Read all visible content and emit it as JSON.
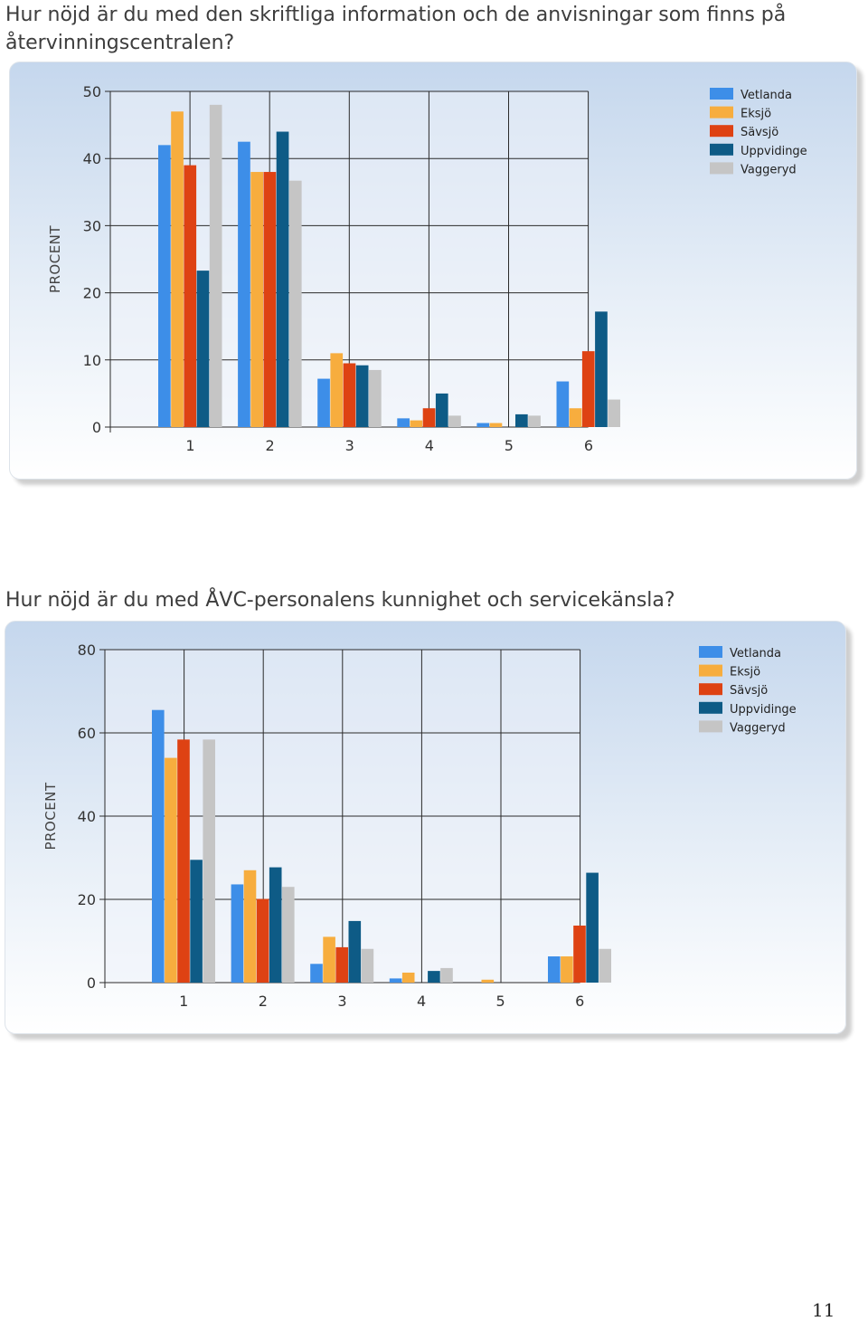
{
  "page": {
    "heading_1": "Hur nöjd är du med den skriftliga information och de anvisningar som finns på återvinningscentralen?",
    "heading_2": "Hur nöjd är du med ÅVC-personalens kunnighet och servicekänsla?",
    "page_number": "11"
  },
  "chart_data": [
    {
      "type": "bar",
      "title": "",
      "xlabel": "",
      "ylabel": "PROCENT",
      "categories": [
        "1",
        "2",
        "3",
        "4",
        "5",
        "6"
      ],
      "ylim": [
        0,
        50
      ],
      "yticks": [
        0,
        10,
        20,
        30,
        40,
        50
      ],
      "grid": true,
      "legend_position": "top-right",
      "series": [
        {
          "name": "Vetlanda",
          "color": "#3d8ee8",
          "values": [
            42,
            42.5,
            7.2,
            1.3,
            0.6,
            6.8
          ]
        },
        {
          "name": "Eksjö",
          "color": "#f7ad3e",
          "values": [
            47,
            38,
            11,
            1.0,
            0.6,
            2.8
          ]
        },
        {
          "name": "Sävsjö",
          "color": "#de4213",
          "values": [
            39,
            38,
            9.5,
            2.8,
            0,
            11.3
          ]
        },
        {
          "name": "Uppvidinge",
          "color": "#0e5b86",
          "values": [
            23.3,
            44,
            9.2,
            5.0,
            1.9,
            17.2
          ]
        },
        {
          "name": "Vaggeryd",
          "color": "#c5c5c5",
          "values": [
            48,
            36.7,
            8.5,
            1.7,
            1.7,
            4.1
          ]
        }
      ]
    },
    {
      "type": "bar",
      "title": "",
      "xlabel": "",
      "ylabel": "PROCENT",
      "categories": [
        "1",
        "2",
        "3",
        "4",
        "5",
        "6"
      ],
      "ylim": [
        0,
        80
      ],
      "yticks": [
        0,
        20,
        40,
        60,
        80
      ],
      "grid": true,
      "legend_position": "top-right",
      "series": [
        {
          "name": "Vetlanda",
          "color": "#3d8ee8",
          "values": [
            65.5,
            23.6,
            4.5,
            1.0,
            0,
            6.3
          ]
        },
        {
          "name": "Eksjö",
          "color": "#f7ad3e",
          "values": [
            54,
            27,
            11,
            2.4,
            0.7,
            6.3
          ]
        },
        {
          "name": "Sävsjö",
          "color": "#de4213",
          "values": [
            58.4,
            20.1,
            8.5,
            0,
            0,
            13.7
          ]
        },
        {
          "name": "Uppvidinge",
          "color": "#0e5b86",
          "values": [
            29.5,
            27.7,
            14.8,
            2.8,
            0,
            26.4
          ]
        },
        {
          "name": "Vaggeryd",
          "color": "#c5c5c5",
          "values": [
            58.4,
            23,
            8.1,
            3.5,
            0,
            8.1
          ]
        }
      ]
    }
  ]
}
